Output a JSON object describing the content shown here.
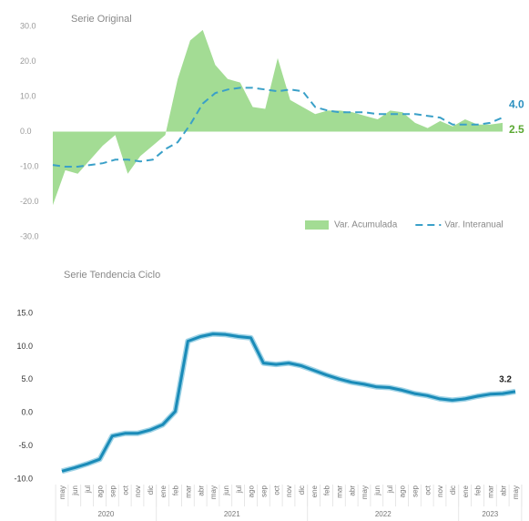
{
  "chart_data": [
    {
      "type": "area",
      "title": "Serie Original",
      "ylim": [
        -30,
        30
      ],
      "yticks": [
        {
          "value": 30,
          "label": "30.0"
        },
        {
          "value": 20,
          "label": "20.0"
        },
        {
          "value": 10,
          "label": "10.0"
        },
        {
          "value": 0,
          "label": "0.0"
        },
        {
          "value": -10,
          "label": "-10.0"
        },
        {
          "value": -20,
          "label": "-20.0"
        },
        {
          "value": -30,
          "label": "-30.0"
        }
      ],
      "legend": "bottom-right",
      "series": [
        {
          "name": "Var. Acumulada",
          "type": "area",
          "color": "#a3dc94",
          "values": [
            -21,
            -11,
            -12,
            -8,
            -4,
            -1,
            -12,
            -7,
            -4,
            -1,
            15,
            26,
            29,
            19,
            15,
            14,
            7,
            6.5,
            21,
            9,
            7,
            5,
            6,
            6,
            5.5,
            4.5,
            3.5,
            6,
            5.5,
            2.5,
            1,
            3,
            1.5,
            3.5,
            2,
            2,
            2.5
          ],
          "value_labels": [
            null,
            null,
            null,
            null,
            null,
            null,
            null,
            null,
            null,
            null,
            null,
            null,
            null,
            null,
            null,
            null,
            null,
            null,
            null,
            null,
            null,
            null,
            null,
            null,
            null,
            null,
            null,
            null,
            null,
            null,
            null,
            null,
            null,
            null,
            null,
            null,
            "2.5"
          ],
          "label_color": "#5aa832"
        },
        {
          "name": "Var. Interanual",
          "type": "line",
          "style": "dashed",
          "color": "#3aa0c8",
          "values": [
            -9.5,
            -10,
            -10,
            -9.5,
            -9,
            -8,
            -8,
            -8.5,
            -8,
            -5,
            -3,
            2,
            8,
            11,
            12,
            12.5,
            12.5,
            12,
            11.5,
            12,
            11.5,
            7,
            6,
            5.5,
            5.5,
            5.5,
            5,
            5,
            5,
            5,
            4.5,
            4,
            2,
            2,
            2,
            2.5,
            4
          ],
          "value_labels": [
            null,
            null,
            null,
            null,
            null,
            null,
            null,
            null,
            null,
            null,
            null,
            null,
            null,
            null,
            null,
            null,
            null,
            null,
            null,
            null,
            null,
            null,
            null,
            null,
            null,
            null,
            null,
            null,
            null,
            null,
            null,
            null,
            null,
            null,
            null,
            null,
            "4.0"
          ],
          "label_color": "#2a8fbf"
        }
      ]
    },
    {
      "type": "line",
      "title": "Serie Tendencia Ciclo",
      "categories": [
        "may",
        "jun",
        "jul",
        "ago",
        "sep",
        "oct",
        "nov",
        "dic",
        "ene",
        "feb",
        "mar",
        "abr",
        "may",
        "jun",
        "jul",
        "ago",
        "sep",
        "oct",
        "nov",
        "dic",
        "ene",
        "feb",
        "mar",
        "abr",
        "may",
        "jun",
        "jul",
        "ago",
        "sep",
        "oct",
        "nov",
        "dic",
        "ene",
        "feb",
        "mar",
        "abr",
        "may"
      ],
      "x_groups": [
        {
          "label": "2020",
          "count": 8
        },
        {
          "label": "2021",
          "count": 12
        },
        {
          "label": "2022",
          "count": 12
        },
        {
          "label": "2023",
          "count": 5
        }
      ],
      "ylim": [
        -10,
        15
      ],
      "yticks": [
        {
          "value": 15,
          "label": "15.0"
        },
        {
          "value": 10,
          "label": "10.0"
        },
        {
          "value": 5,
          "label": "5.0"
        },
        {
          "value": 0,
          "label": "0.0"
        },
        {
          "value": -5,
          "label": "-5.0"
        },
        {
          "value": -10,
          "label": "-10.0"
        }
      ],
      "series": [
        {
          "color": "#1a8bb8",
          "values": [
            -8.8,
            -8.3,
            -7.7,
            -7,
            -3.5,
            -3.1,
            -3.1,
            -2.6,
            -1.8,
            0.2,
            10.8,
            11.5,
            11.9,
            11.8,
            11.5,
            11.3,
            7.5,
            7.3,
            7.5,
            7.1,
            6.4,
            5.7,
            5.1,
            4.6,
            4.3,
            3.9,
            3.8,
            3.4,
            2.9,
            2.6,
            2.1,
            1.9,
            2.1,
            2.5,
            2.8,
            2.9,
            3.2
          ],
          "end_label": true
        }
      ]
    }
  ]
}
